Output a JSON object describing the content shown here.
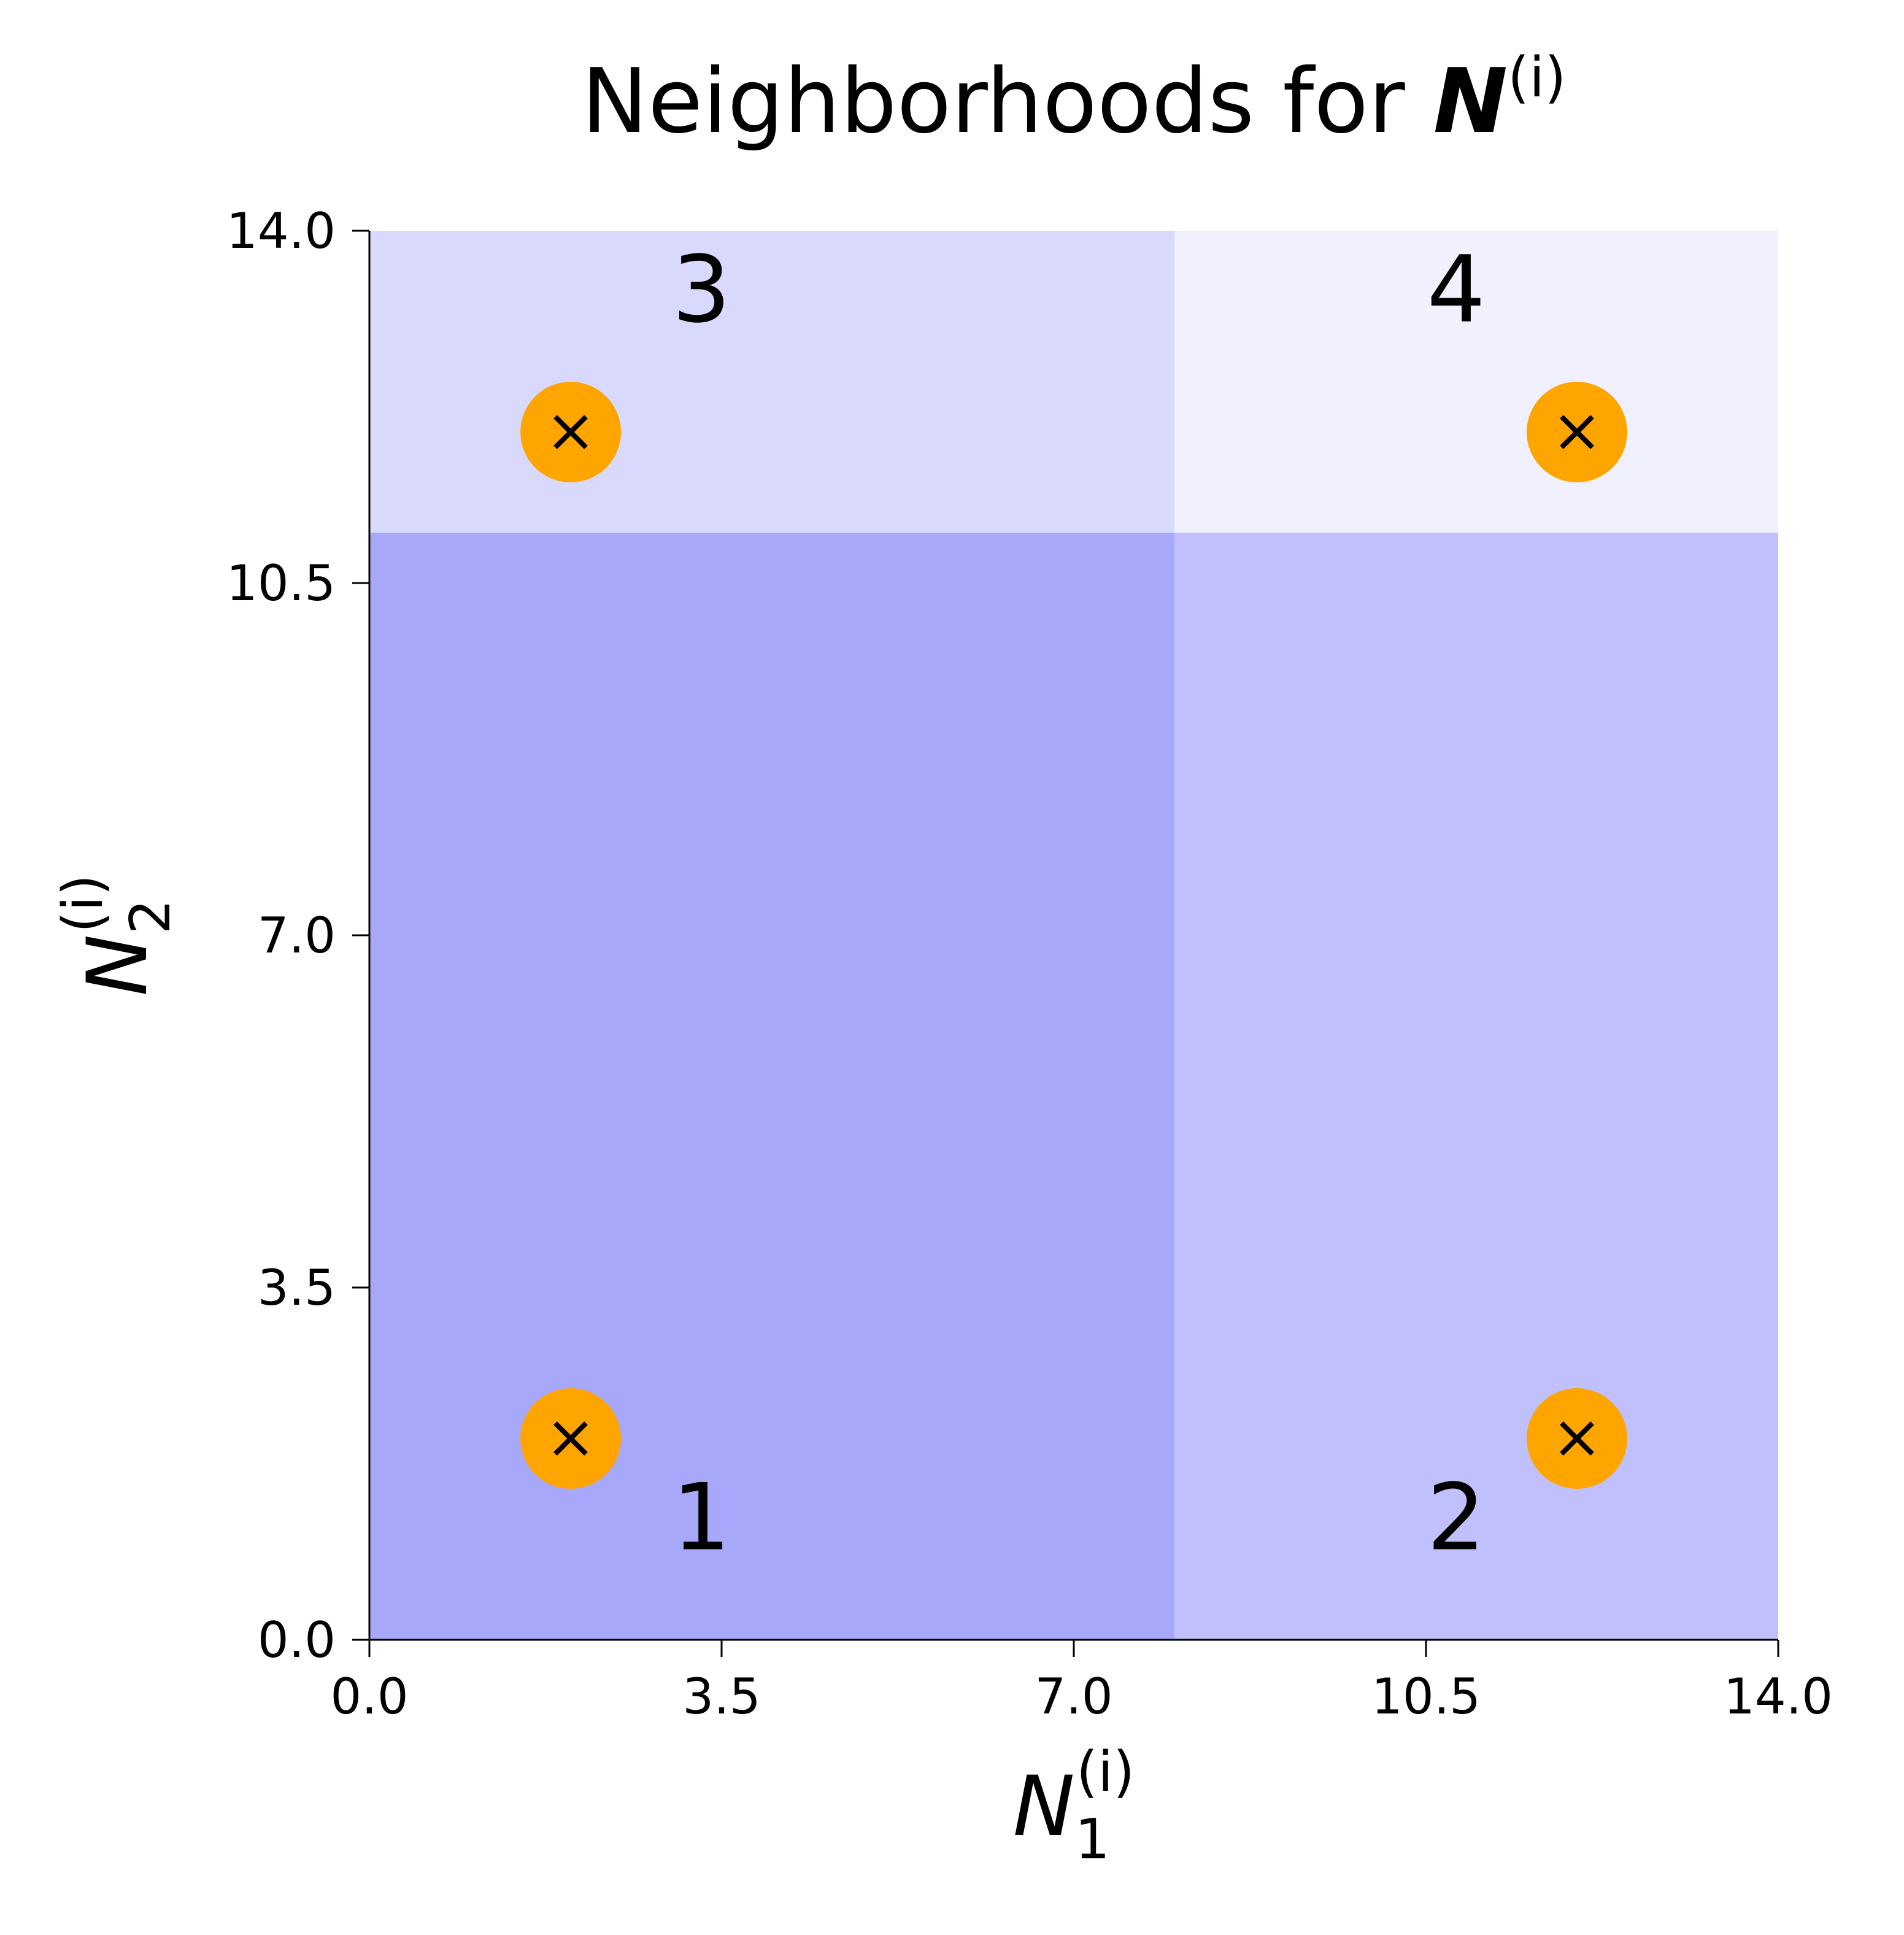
{
  "chart_data": {
    "type": "heatmap",
    "title": {
      "text": "Neighborhoods for ",
      "symbol": "N",
      "superscript": "(i)"
    },
    "xlabel": {
      "symbol": "N",
      "subscript": "1",
      "superscript": "(i)"
    },
    "ylabel": {
      "symbol": "N",
      "subscript": "2",
      "superscript": "(i)"
    },
    "xlim": [
      0,
      14
    ],
    "ylim": [
      0,
      14
    ],
    "xticks": [
      0.0,
      3.5,
      7.0,
      10.5,
      14.0
    ],
    "yticks": [
      0.0,
      3.5,
      7.0,
      10.5,
      14.0
    ],
    "xtick_labels": [
      "0.0",
      "3.5",
      "7.0",
      "10.5",
      "14.0"
    ],
    "ytick_labels": [
      "0.0",
      "3.5",
      "7.0",
      "10.5",
      "14.0"
    ],
    "regions": [
      {
        "label": "1",
        "x": [
          0,
          8
        ],
        "y": [
          0,
          11
        ],
        "color": "#a8a8fb",
        "label_at": [
          3.3,
          0.9
        ]
      },
      {
        "label": "2",
        "x": [
          8,
          14
        ],
        "y": [
          0,
          11
        ],
        "color": "#c0c0fd",
        "label_at": [
          10.8,
          0.9
        ]
      },
      {
        "label": "3",
        "x": [
          0,
          8
        ],
        "y": [
          11,
          14
        ],
        "color": "#d9d9fe",
        "label_at": [
          3.3,
          13.1
        ]
      },
      {
        "label": "4",
        "x": [
          8,
          14
        ],
        "y": [
          11,
          14
        ],
        "color": "#f0f0fe",
        "label_at": [
          10.8,
          13.1
        ]
      }
    ],
    "points": [
      {
        "x": 2,
        "y": 12
      },
      {
        "x": 12,
        "y": 12
      },
      {
        "x": 2,
        "y": 2
      },
      {
        "x": 12,
        "y": 2
      }
    ],
    "point_color": "#ffa500",
    "marker_color": "#000000"
  }
}
